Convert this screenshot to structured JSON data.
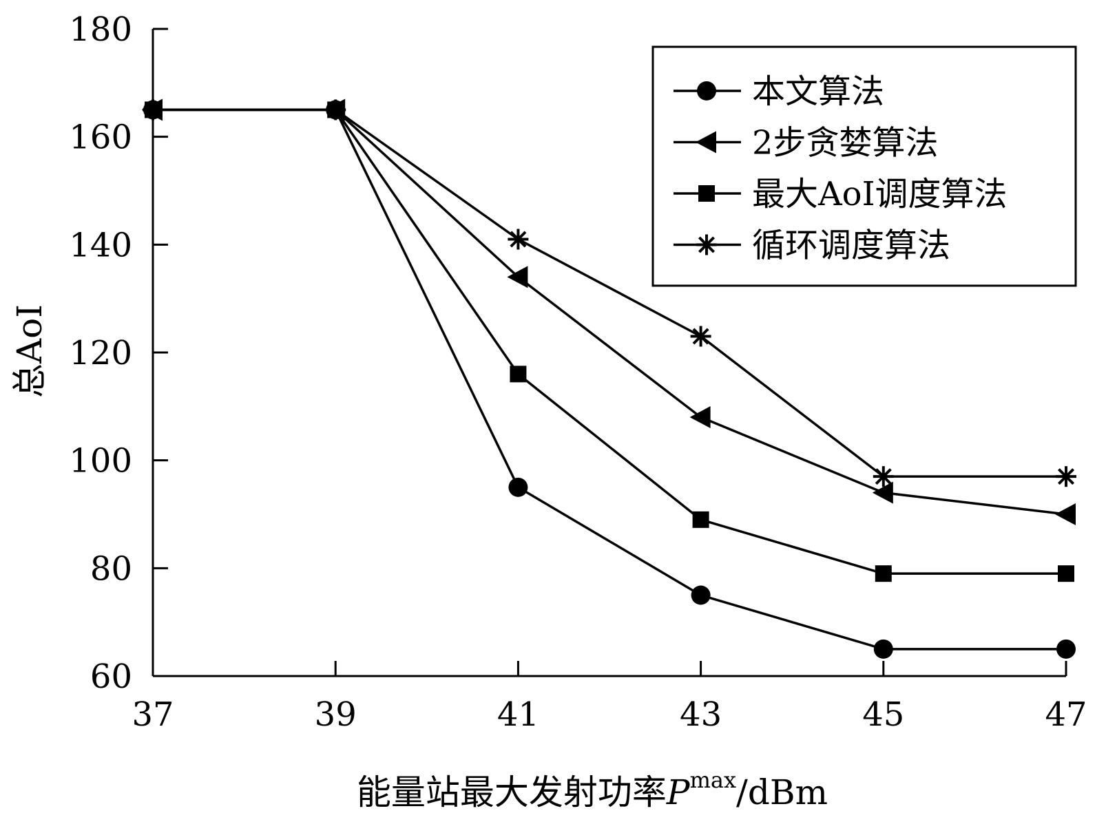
{
  "chart_data": {
    "type": "line",
    "title": "",
    "ylabel": "总AoI",
    "xlabel": "能量站最大发射功率",
    "xlabel_symbol": "P",
    "xlabel_superscript": "max",
    "xlabel_unit": "/dBm",
    "x": [
      37,
      39,
      41,
      43,
      45,
      47
    ],
    "xticks": [
      "37",
      "39",
      "41",
      "43",
      "45",
      "47"
    ],
    "xlim": [
      37,
      47
    ],
    "yticks": [
      "60",
      "80",
      "100",
      "120",
      "140",
      "160",
      "180"
    ],
    "ylim": [
      60,
      180
    ],
    "grid": false,
    "legend_position": "top-right",
    "series": [
      {
        "name": "本文算法",
        "marker": "circle",
        "values": [
          165,
          165,
          95,
          75,
          65,
          65
        ]
      },
      {
        "name": "2步贪婪算法",
        "marker": "triangle-left",
        "values": [
          165,
          165,
          134,
          108,
          94,
          90
        ]
      },
      {
        "name": "最大AoI调度算法",
        "marker": "square",
        "values": [
          165,
          165,
          116,
          89,
          79,
          79
        ]
      },
      {
        "name": "循环调度算法",
        "marker": "asterisk",
        "values": [
          165,
          165,
          141,
          123,
          97,
          97
        ]
      }
    ]
  }
}
